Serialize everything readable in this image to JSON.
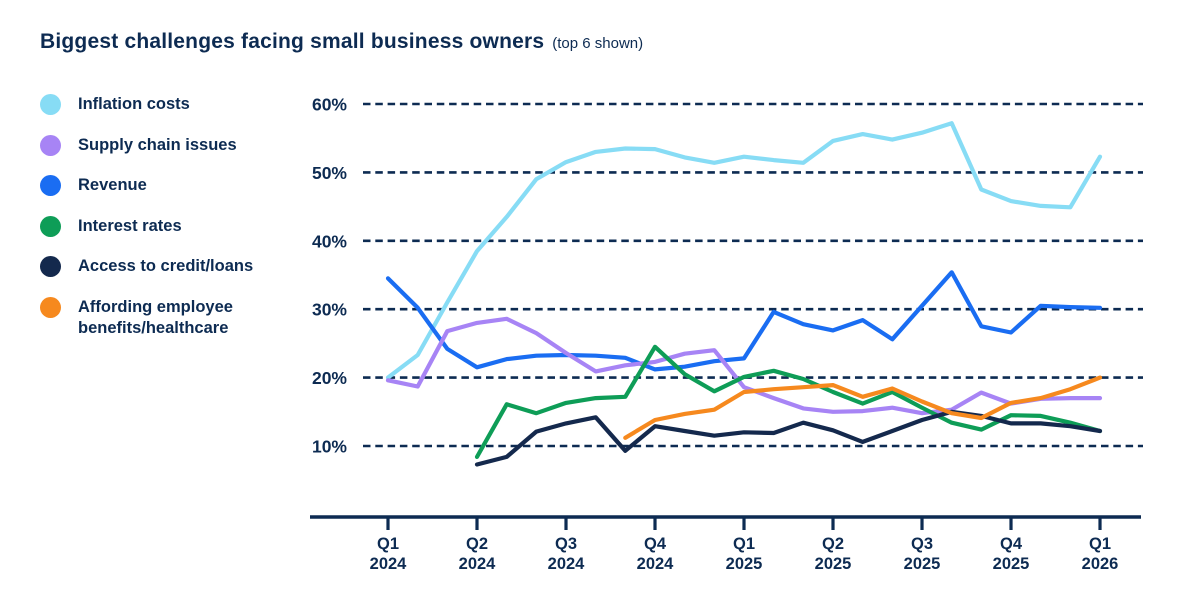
{
  "page": {
    "background": "#ffffff",
    "text_color": "#0d2b52"
  },
  "header": {
    "title": "Biggest challenges facing small business owners",
    "subtitle": "(top 6 shown)"
  },
  "legend": {
    "position": "left",
    "items": [
      {
        "label": "Inflation costs",
        "color": "#87dcf5"
      },
      {
        "label": "Supply chain issues",
        "color": "#a784f5"
      },
      {
        "label": "Revenue",
        "color": "#1a6df2"
      },
      {
        "label": "Interest rates",
        "color": "#0e9d57"
      },
      {
        "label": "Access to credit/loans",
        "color": "#14294d"
      },
      {
        "label": "Affording employee benefits/healthcare",
        "color": "#f6891e"
      }
    ]
  },
  "chart_data": {
    "type": "line",
    "title": "Biggest challenges facing small business owners (top 6 shown)",
    "x_unit": "month",
    "months": [
      "2024-01",
      "2024-02",
      "2024-03",
      "2024-04",
      "2024-05",
      "2024-06",
      "2024-07",
      "2024-08",
      "2024-09",
      "2024-10",
      "2024-11",
      "2024-12",
      "2025-01",
      "2025-02",
      "2025-03",
      "2025-04",
      "2025-05",
      "2025-06",
      "2025-07",
      "2025-08",
      "2025-09",
      "2025-10",
      "2025-11",
      "2025-12",
      "2026-01"
    ],
    "x_tick_labels": [
      {
        "quarter": "Q1",
        "year": "2024",
        "month_index": 0
      },
      {
        "quarter": "Q2",
        "year": "2024",
        "month_index": 3
      },
      {
        "quarter": "Q3",
        "year": "2024",
        "month_index": 6
      },
      {
        "quarter": "Q4",
        "year": "2024",
        "month_index": 9
      },
      {
        "quarter": "Q1",
        "year": "2025",
        "month_index": 12
      },
      {
        "quarter": "Q2",
        "year": "2025",
        "month_index": 15
      },
      {
        "quarter": "Q3",
        "year": "2025",
        "month_index": 18
      },
      {
        "quarter": "Q4",
        "year": "2025",
        "month_index": 21
      },
      {
        "quarter": "Q1",
        "year": "2026",
        "month_index": 24
      }
    ],
    "ylim": [
      10,
      60
    ],
    "y_ticks": [
      {
        "value": 60,
        "label": "60%"
      },
      {
        "value": 50,
        "label": "50%"
      },
      {
        "value": 40,
        "label": "40%"
      },
      {
        "value": 30,
        "label": "30%"
      },
      {
        "value": 20,
        "label": "20%"
      },
      {
        "value": 10,
        "label": "10%"
      }
    ],
    "grid": "horizontal-dashed",
    "legend_position": "left",
    "series": [
      {
        "name": "Inflation costs",
        "color": "#87dcf5",
        "values": [
          20.0,
          23.3,
          31.0,
          38.5,
          43.5,
          49.0,
          51.5,
          53.0,
          53.5,
          53.4,
          52.2,
          51.4,
          52.3,
          51.8,
          51.4,
          54.6,
          55.6,
          54.8,
          55.8,
          57.2,
          47.5,
          45.8,
          45.1,
          44.9,
          52.3
        ]
      },
      {
        "name": "Supply chain issues",
        "color": "#a784f5",
        "values": [
          19.6,
          18.7,
          26.8,
          28.0,
          28.6,
          26.5,
          23.6,
          20.9,
          21.8,
          22.3,
          23.5,
          24.0,
          18.6,
          17.0,
          15.5,
          15.0,
          15.1,
          15.6,
          14.8,
          15.3,
          17.8,
          16.2,
          16.9,
          17.0,
          17.0
        ]
      },
      {
        "name": "Revenue",
        "color": "#1a6df2",
        "values": [
          34.5,
          30.2,
          24.2,
          21.5,
          22.7,
          23.2,
          23.3,
          23.2,
          22.9,
          21.2,
          21.6,
          22.4,
          22.8,
          29.6,
          27.8,
          26.9,
          28.4,
          25.6,
          30.5,
          35.4,
          27.5,
          26.6,
          30.5,
          30.3,
          30.2
        ]
      },
      {
        "name": "Interest rates",
        "color": "#0e9d57",
        "values": [
          null,
          null,
          null,
          8.4,
          16.1,
          14.8,
          16.3,
          17.0,
          17.2,
          24.5,
          20.5,
          18.0,
          20.1,
          21.0,
          19.8,
          17.9,
          16.2,
          17.9,
          15.6,
          13.4,
          12.4,
          14.5,
          14.4,
          13.4,
          12.2
        ]
      },
      {
        "name": "Access to credit/loans",
        "color": "#14294d",
        "values": [
          null,
          null,
          null,
          7.3,
          8.4,
          12.1,
          13.3,
          14.2,
          9.3,
          12.9,
          12.2,
          11.5,
          12.0,
          11.9,
          13.4,
          12.3,
          10.6,
          12.2,
          13.8,
          15.0,
          14.4,
          13.3,
          13.3,
          12.9,
          12.2
        ]
      },
      {
        "name": "Affording employee benefits/healthcare",
        "color": "#f6891e",
        "values": [
          null,
          null,
          null,
          null,
          null,
          null,
          null,
          null,
          11.2,
          13.8,
          14.7,
          15.3,
          17.9,
          18.3,
          18.6,
          18.9,
          17.2,
          18.4,
          16.5,
          14.8,
          14.1,
          16.3,
          17.0,
          18.3,
          20.0
        ]
      }
    ]
  }
}
